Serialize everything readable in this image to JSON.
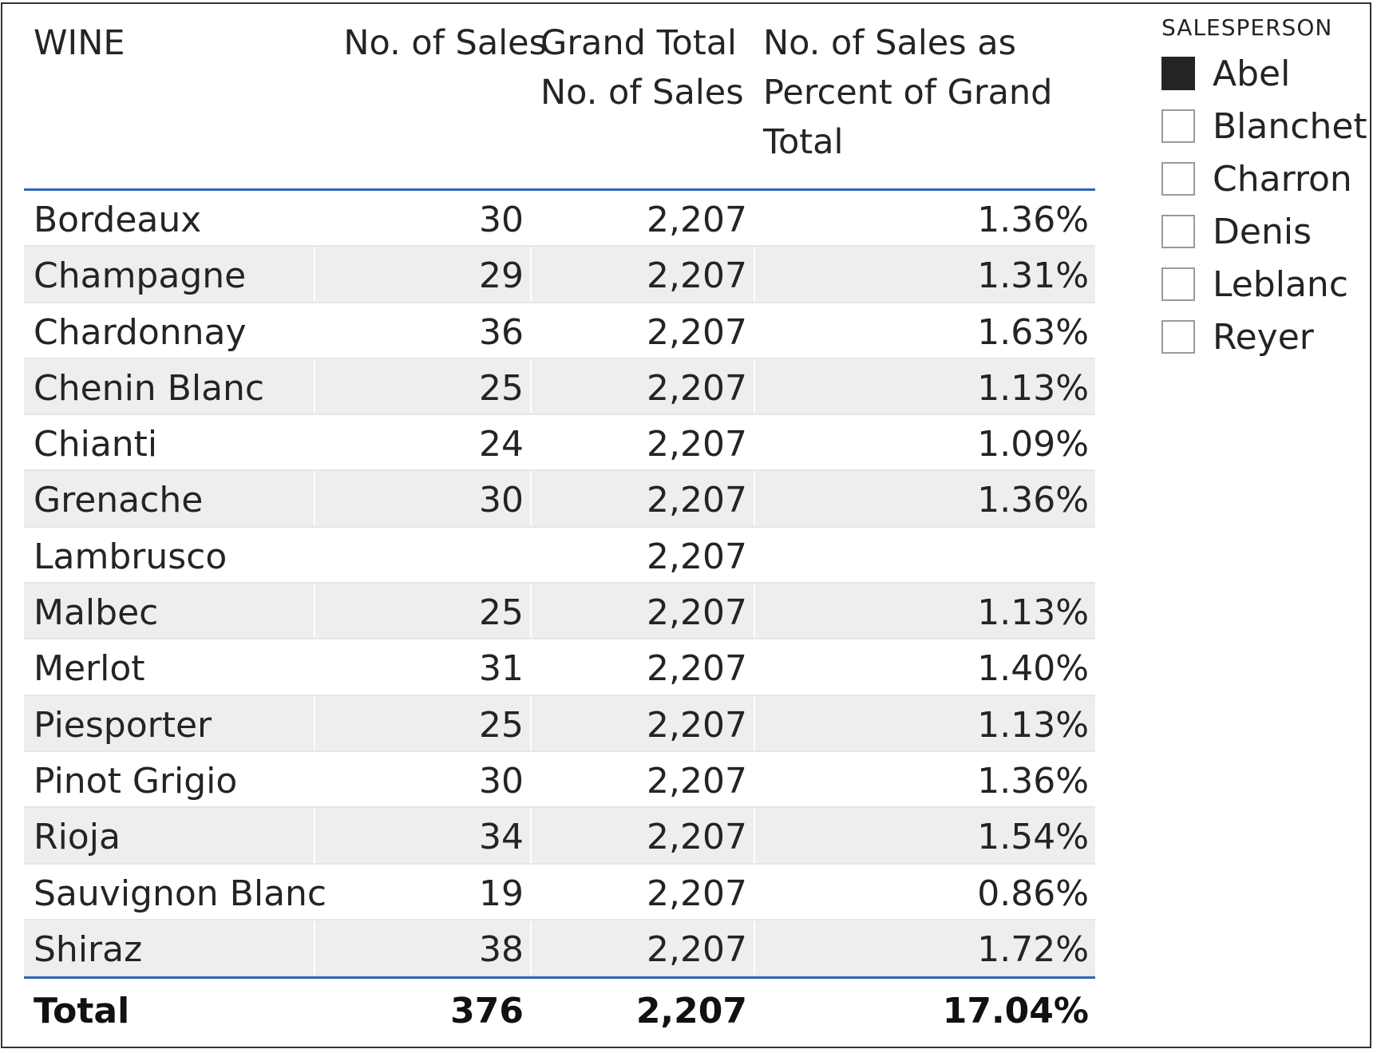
{
  "table": {
    "headers": {
      "wine": "WINE",
      "sales": "No. of Sales",
      "grand_line1": "Grand Total",
      "grand_line2": "No. of Sales",
      "pct_line1": "No. of Sales as",
      "pct_line2": "Percent of Grand",
      "pct_line3": "Total"
    },
    "rows": [
      {
        "wine": "Bordeaux",
        "sales": "30",
        "grand": "2,207",
        "pct": "1.36%"
      },
      {
        "wine": "Champagne",
        "sales": "29",
        "grand": "2,207",
        "pct": "1.31%"
      },
      {
        "wine": "Chardonnay",
        "sales": "36",
        "grand": "2,207",
        "pct": "1.63%"
      },
      {
        "wine": "Chenin Blanc",
        "sales": "25",
        "grand": "2,207",
        "pct": "1.13%"
      },
      {
        "wine": "Chianti",
        "sales": "24",
        "grand": "2,207",
        "pct": "1.09%"
      },
      {
        "wine": "Grenache",
        "sales": "30",
        "grand": "2,207",
        "pct": "1.36%"
      },
      {
        "wine": "Lambrusco",
        "sales": "",
        "grand": "2,207",
        "pct": ""
      },
      {
        "wine": "Malbec",
        "sales": "25",
        "grand": "2,207",
        "pct": "1.13%"
      },
      {
        "wine": "Merlot",
        "sales": "31",
        "grand": "2,207",
        "pct": "1.40%"
      },
      {
        "wine": "Piesporter",
        "sales": "25",
        "grand": "2,207",
        "pct": "1.13%"
      },
      {
        "wine": "Pinot Grigio",
        "sales": "30",
        "grand": "2,207",
        "pct": "1.36%"
      },
      {
        "wine": "Rioja",
        "sales": "34",
        "grand": "2,207",
        "pct": "1.54%"
      },
      {
        "wine": "Sauvignon Blanc",
        "sales": "19",
        "grand": "2,207",
        "pct": "0.86%"
      },
      {
        "wine": "Shiraz",
        "sales": "38",
        "grand": "2,207",
        "pct": "1.72%"
      }
    ],
    "total": {
      "label": "Total",
      "sales": "376",
      "grand": "2,207",
      "pct": "17.04%"
    }
  },
  "slicer": {
    "title": "SALESPERSON",
    "items": [
      {
        "label": "Abel",
        "checked": true
      },
      {
        "label": "Blanchet",
        "checked": false
      },
      {
        "label": "Charron",
        "checked": false
      },
      {
        "label": "Denis",
        "checked": false
      },
      {
        "label": "Leblanc",
        "checked": false
      },
      {
        "label": "Reyer",
        "checked": false
      }
    ]
  },
  "colors": {
    "header_rule": "#2f66b5",
    "row_alt": "#eeeeee",
    "checkbox_checked": "#252423"
  }
}
